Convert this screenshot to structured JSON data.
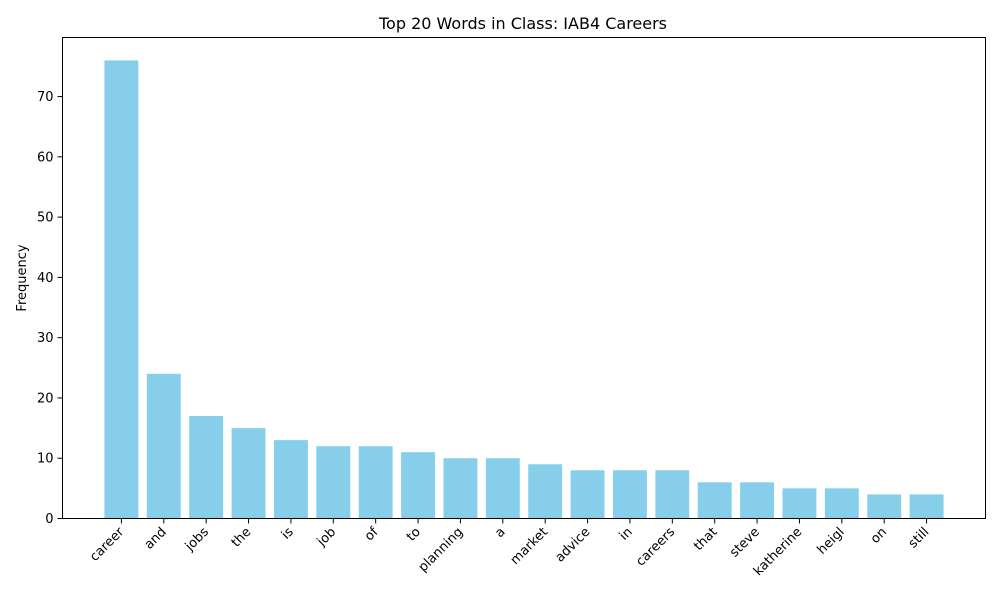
{
  "chart_data": {
    "type": "bar",
    "title": "Top 20 Words in Class: IAB4 Careers",
    "xlabel": "",
    "ylabel": "Frequency",
    "categories": [
      "career",
      "and",
      "jobs",
      "the",
      "is",
      "job",
      "of",
      "to",
      "planning",
      "a",
      "market",
      "advice",
      "in",
      "careers",
      "that",
      "steve",
      "katherine",
      "heigl",
      "on",
      "still"
    ],
    "values": [
      76,
      24,
      17,
      15,
      13,
      12,
      12,
      11,
      10,
      10,
      9,
      8,
      8,
      8,
      6,
      6,
      5,
      5,
      4,
      4
    ],
    "ylim": [
      0,
      79.8
    ],
    "yticks": [
      0,
      10,
      20,
      30,
      40,
      50,
      60,
      70
    ],
    "bar_color": "#87ceeb",
    "grid": false,
    "legend": "none"
  }
}
